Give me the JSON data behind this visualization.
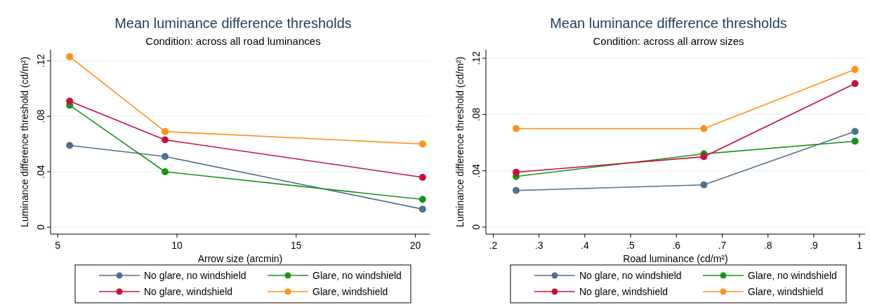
{
  "chart_data": [
    {
      "type": "line",
      "title": "Mean luminance difference thresholds",
      "subtitle": "Condition: across all road luminances",
      "xlabel": "Arrow size (arcmin)",
      "ylabel": "Luminance difference threshold (cd/m²)",
      "x": [
        5.5,
        9.5,
        20.3
      ],
      "series": [
        {
          "name": "No glare, no windshield",
          "color": "#4f7190",
          "values": [
            0.059,
            0.051,
            0.013
          ]
        },
        {
          "name": "Glare, no windshield",
          "color": "#1a921a",
          "values": [
            0.088,
            0.04,
            0.02
          ]
        },
        {
          "name": "No glare, windshield",
          "color": "#c8103e",
          "values": [
            0.091,
            0.063,
            0.036
          ]
        },
        {
          "name": "Glare, windshield",
          "color": "#ff9018",
          "values": [
            0.123,
            0.069,
            0.06
          ]
        }
      ],
      "xlim": [
        4.7,
        20.6
      ],
      "xticks": [
        5,
        10,
        15,
        20
      ],
      "ylim": [
        -0.005,
        0.128
      ],
      "yticks": [
        {
          "value": 0,
          "label": "0"
        },
        {
          "value": 0.04,
          "label": ".04"
        },
        {
          "value": 0.08,
          "label": ".08"
        },
        {
          "value": 0.12,
          "label": ".12"
        }
      ],
      "grid": "y",
      "legend": "bottom",
      "marker": "circle",
      "line_style": "solid"
    },
    {
      "type": "line",
      "title": "Mean luminance difference thresholds",
      "subtitle": "Condition: across all arrow sizes",
      "xlabel": "Road luminance (cd/m²)",
      "ylabel": "Luminance difference threshold (cd/m²)",
      "x": [
        0.25,
        0.66,
        0.99
      ],
      "series": [
        {
          "name": "No glare, no windshield",
          "color": "#4f7190",
          "values": [
            0.026,
            0.03,
            0.068
          ]
        },
        {
          "name": "Glare, no windshield",
          "color": "#1a921a",
          "values": [
            0.036,
            0.052,
            0.061
          ]
        },
        {
          "name": "No glare, windshield",
          "color": "#c8103e",
          "values": [
            0.039,
            0.05,
            0.102
          ]
        },
        {
          "name": "Glare, windshield",
          "color": "#ff9018",
          "values": [
            0.07,
            0.07,
            0.112
          ]
        }
      ],
      "xlim": [
        0.184,
        1.012
      ],
      "xticks": [
        {
          "value": 0.2,
          "label": ".2"
        },
        {
          "value": 0.3,
          "label": ".3"
        },
        {
          "value": 0.4,
          "label": ".4"
        },
        {
          "value": 0.5,
          "label": ".5"
        },
        {
          "value": 0.6,
          "label": ".6"
        },
        {
          "value": 0.7,
          "label": ".7"
        },
        {
          "value": 0.8,
          "label": ".8"
        },
        {
          "value": 0.9,
          "label": ".9"
        },
        {
          "value": 1,
          "label": "1"
        }
      ],
      "ylim": [
        -0.005,
        0.126
      ],
      "yticks": [
        {
          "value": 0,
          "label": "0"
        },
        {
          "value": 0.04,
          "label": ".04"
        },
        {
          "value": 0.08,
          "label": ".08"
        },
        {
          "value": 0.12,
          "label": ".12"
        }
      ],
      "grid": "y",
      "legend": "bottom",
      "marker": "circle",
      "line_style": "solid"
    }
  ]
}
